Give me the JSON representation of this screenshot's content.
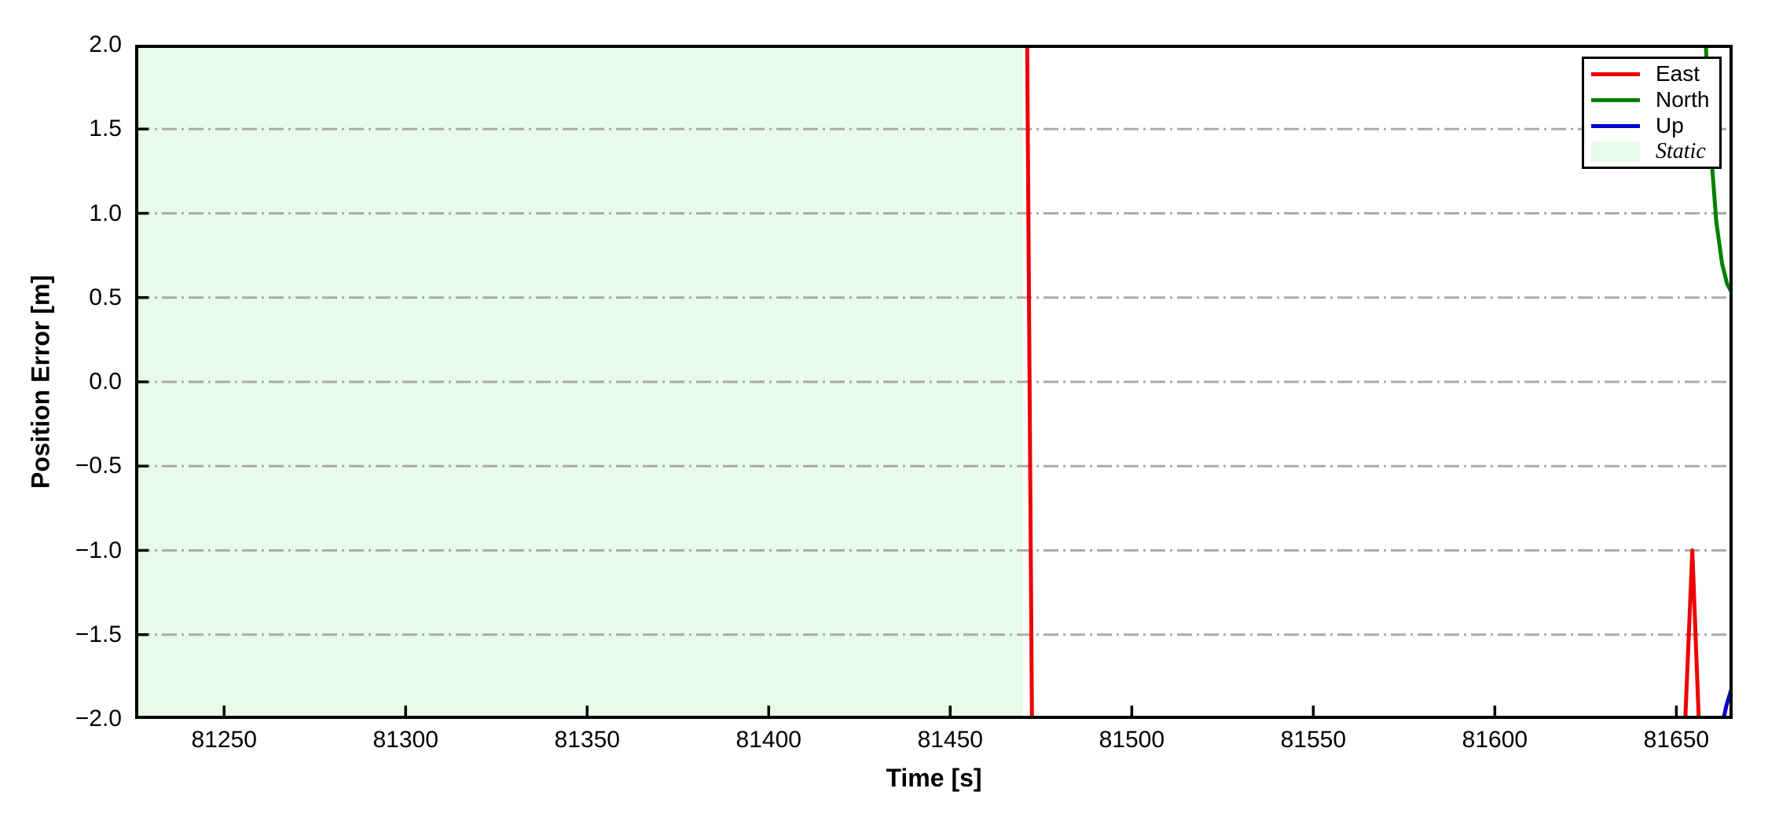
{
  "chart_data": {
    "type": "line",
    "title": "",
    "xlabel": "Time [s]",
    "ylabel": "Position Error [m]",
    "xlim": [
      81225.5,
      81665.5
    ],
    "ylim": [
      -2.0,
      2.0
    ],
    "xticks": {
      "values": [
        81250,
        81300,
        81350,
        81400,
        81450,
        81500,
        81550,
        81600,
        81650
      ],
      "labels": [
        "81250",
        "81300",
        "81350",
        "81400",
        "81450",
        "81500",
        "81550",
        "81600",
        "81650"
      ]
    },
    "yticks": {
      "values": [
        2.0,
        1.5,
        1.0,
        0.5,
        0.0,
        -0.5,
        -1.0,
        -1.5,
        -2.0
      ],
      "labels": [
        "2.0",
        "1.5",
        "1.0",
        "0.5",
        "0.0",
        "−0.5",
        "−1.0",
        "−1.5",
        "−2.0"
      ]
    },
    "grid": {
      "values": [
        1.5,
        1.0,
        0.5,
        0.0,
        -0.5,
        -1.0,
        -1.5
      ],
      "color": "#aaaaaa",
      "style": "dash-dot",
      "on": true
    },
    "static_region": {
      "label": "Static",
      "start": 81225.5,
      "end": 81470,
      "color": "#e8fae8"
    },
    "series": [
      {
        "name": "East",
        "color": "#ee0000",
        "width": 5,
        "points": [
          [
            81225.5,
            2.6
          ],
          [
            81471.0,
            2.6
          ],
          [
            81472.7,
            -2.6
          ],
          [
            81651.3,
            -2.6
          ],
          [
            81654.4,
            -1.0
          ],
          [
            81657.4,
            -2.7
          ],
          [
            81665.5,
            -2.7
          ]
        ]
      },
      {
        "name": "North",
        "color": "#008000",
        "width": 5,
        "points": [
          [
            81225.5,
            2.6
          ],
          [
            81657.0,
            2.6
          ],
          [
            81658.4,
            1.85
          ],
          [
            81659.6,
            1.35
          ],
          [
            81661.0,
            0.95
          ],
          [
            81662.6,
            0.7
          ],
          [
            81664.0,
            0.58
          ],
          [
            81665.5,
            0.52
          ]
        ]
      },
      {
        "name": "Up",
        "color": "#0000cd",
        "width": 5,
        "points": [
          [
            81225.5,
            -2.3
          ],
          [
            81661.8,
            -2.3
          ],
          [
            81662.8,
            -2.02
          ],
          [
            81663.8,
            -1.92
          ],
          [
            81665.5,
            -1.8
          ]
        ]
      }
    ],
    "legend": {
      "position": "top-right",
      "items": [
        {
          "label": "East",
          "type": "line",
          "color": "#ee0000"
        },
        {
          "label": "North",
          "type": "line",
          "color": "#008000"
        },
        {
          "label": "Up",
          "type": "line",
          "color": "#0000cd"
        },
        {
          "label": "Static",
          "type": "patch",
          "color": "#e8fae8"
        }
      ]
    }
  }
}
